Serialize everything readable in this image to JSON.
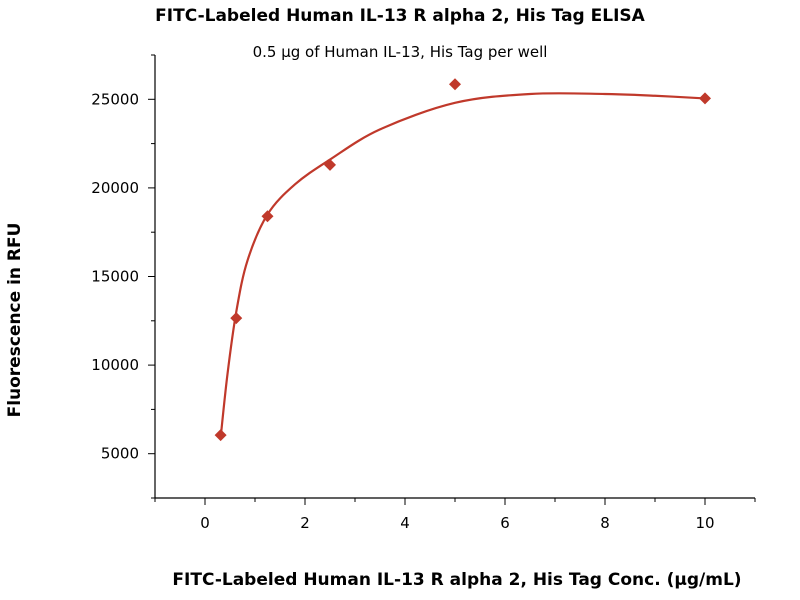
{
  "chart_data": {
    "type": "scatter",
    "title": "FITC-Labeled Human IL-13 R alpha 2, His Tag ELISA",
    "subtitle": "0.5 μg of Human IL-13, His Tag per well",
    "xlabel": "FITC-Labeled Human IL-13 R alpha 2, His Tag Conc. (μg/mL)",
    "ylabel": "Fluorescence in RFU",
    "xlim": [
      -1,
      11
    ],
    "ylim": [
      2500,
      27500
    ],
    "x_ticks": [
      0,
      2,
      4,
      6,
      8,
      10
    ],
    "y_ticks": [
      5000,
      10000,
      15000,
      20000,
      25000
    ],
    "grid": false,
    "series": [
      {
        "x": [
          0.3125,
          0.625,
          1.25,
          2.5,
          5,
          10
        ],
        "y": [
          6050,
          12650,
          18400,
          21300,
          25850,
          25050
        ]
      }
    ],
    "fit_curve": {
      "x": [
        0.3125,
        0.45,
        0.625,
        0.85,
        1.25,
        1.8,
        2.5,
        3.5,
        5,
        6.5,
        8,
        9,
        10
      ],
      "y": [
        5900,
        9500,
        13000,
        15900,
        18500,
        20200,
        21600,
        23300,
        24800,
        25300,
        25300,
        25200,
        25050
      ]
    },
    "colors": {
      "marker": "#c0392b",
      "line": "#c0392b",
      "axis": "#000000"
    }
  }
}
